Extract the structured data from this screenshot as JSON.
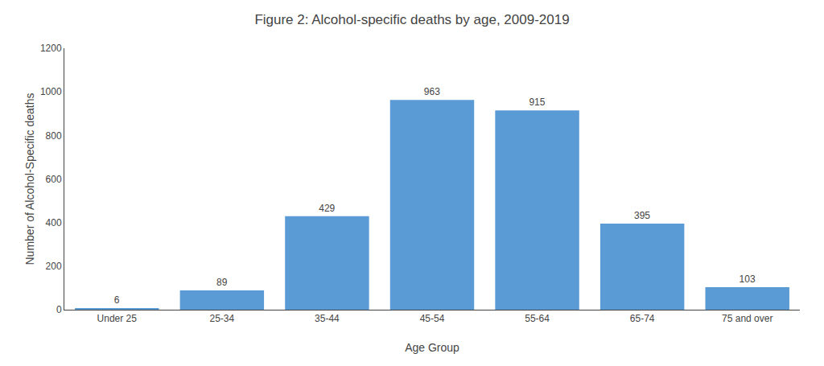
{
  "chart_data": {
    "type": "bar",
    "title": "Figure 2: Alcohol-specific deaths by age, 2009-2019",
    "xlabel": "Age Group",
    "ylabel": "Number of Alcohol-Specific deaths",
    "categories": [
      "Under 25",
      "25-34",
      "35-44",
      "45-54",
      "55-64",
      "65-74",
      "75 and over"
    ],
    "values": [
      6,
      89,
      429,
      963,
      915,
      395,
      103
    ],
    "color": "#5b9bd5",
    "ylim": [
      0,
      1200
    ],
    "yticks": [
      0,
      200,
      400,
      600,
      800,
      1000,
      1200
    ],
    "grid": false,
    "data_labels": true
  }
}
